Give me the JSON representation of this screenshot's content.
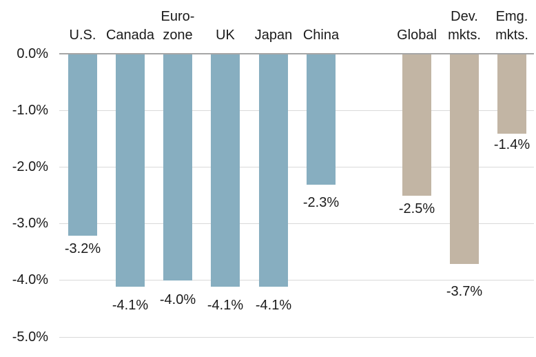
{
  "chart_data": {
    "type": "bar",
    "title": "",
    "categories": [
      "U.S.",
      "Canada",
      "Euro-\nzone",
      "UK",
      "Japan",
      "China",
      "Global",
      "Dev.\nmkts.",
      "Emg.\nmkts."
    ],
    "series": [
      {
        "name": "",
        "values": [
          -3.2,
          -4.1,
          -4.0,
          -4.1,
          -4.1,
          -2.3,
          -2.5,
          -3.7,
          -1.4
        ]
      }
    ],
    "value_labels": [
      "-3.2%",
      "-4.1%",
      "-4.0%",
      "-4.1%",
      "-4.1%",
      "-2.3%",
      "-2.5%",
      "-3.7%",
      "-1.4%"
    ],
    "bar_groups": [
      "region",
      "region",
      "region",
      "region",
      "region",
      "region",
      "aggregate",
      "aggregate",
      "aggregate"
    ],
    "y_axis": {
      "tick_values": [
        0,
        -1,
        -2,
        -3,
        -4,
        -5
      ],
      "tick_labels": [
        "0.0%",
        "-1.0%",
        "-2.0%",
        "-3.0%",
        "-4.0%",
        "-5.0%"
      ],
      "range": [
        -5,
        0
      ],
      "unit": "%"
    },
    "grid": "horizontal",
    "legend": "none",
    "colors": {
      "region_bar": "#87AEC0",
      "aggregate_bar": "#C2B5A4",
      "gridline": "#D9D9D9",
      "axis_line": "#A6A6A6",
      "text": "#1A1A1A",
      "background": "#FFFFFF"
    }
  }
}
